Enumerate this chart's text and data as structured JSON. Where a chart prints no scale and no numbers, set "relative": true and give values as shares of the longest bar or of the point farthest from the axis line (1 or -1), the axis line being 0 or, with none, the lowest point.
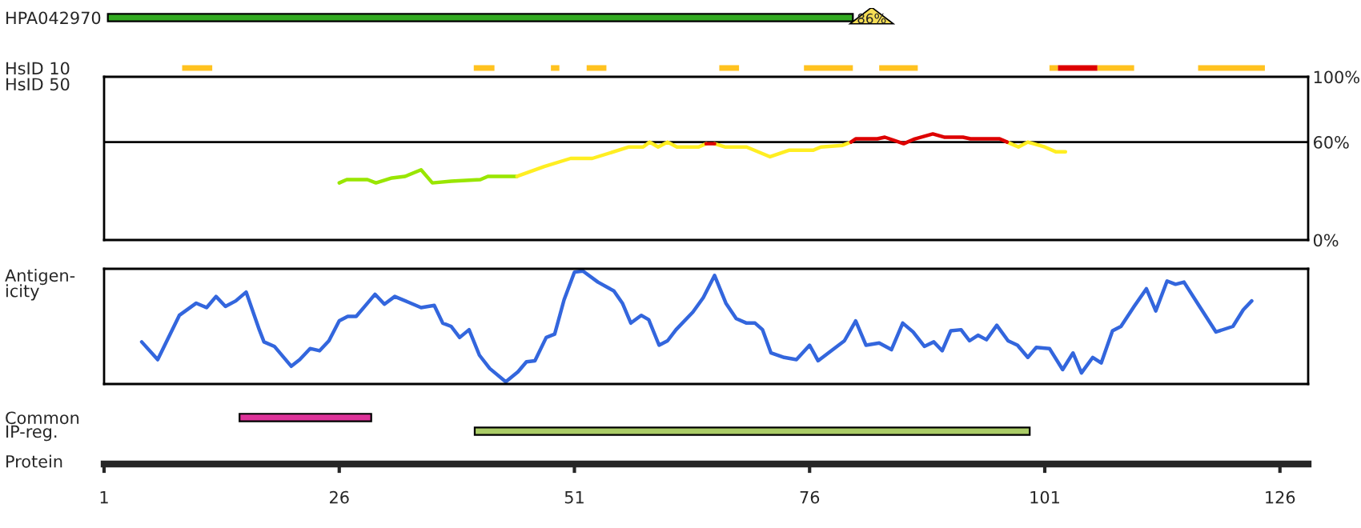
{
  "chart_data": [
    {
      "type": "bar",
      "orientation": "horizontal",
      "categories": [
        "HPA042970"
      ],
      "base": [
        1.4
      ],
      "values": [
        79.2
      ],
      "color": "#33aa22",
      "xlim": [
        1,
        129
      ],
      "tick_labels": "y",
      "annotations": [
        "86%"
      ]
    },
    {
      "type": "bar",
      "orientation": "horizontal",
      "categories": [
        "HsID 10"
      ],
      "xlim": [
        1,
        129
      ],
      "tick_labels": "y",
      "series": [
        {
          "color": "#ffc21f",
          "base": [
            9.3
          ],
          "values": [
            3.2
          ]
        },
        {
          "color": "#ffc21f",
          "base": [
            40.3
          ],
          "values": [
            2.2
          ]
        },
        {
          "color": "#ffc21f",
          "base": [
            48.5
          ],
          "values": [
            0.9
          ]
        },
        {
          "color": "#ffc21f",
          "base": [
            52.3
          ],
          "values": [
            2.1
          ]
        },
        {
          "color": "#ffc21f",
          "base": [
            66.4
          ],
          "values": [
            2.1
          ]
        },
        {
          "color": "#ffc21f",
          "base": [
            75.4
          ],
          "values": [
            5.2
          ]
        },
        {
          "color": "#ffc21f",
          "base": [
            83.4
          ],
          "values": [
            4.1
          ]
        },
        {
          "color": "#ffc21f",
          "base": [
            101.5
          ],
          "values": [
            0.9
          ]
        },
        {
          "color": "#dd0000",
          "base": [
            102.4
          ],
          "values": [
            4.2
          ]
        },
        {
          "color": "#ffc21f",
          "base": [
            106.6
          ],
          "values": [
            3.9
          ]
        },
        {
          "color": "#ffc21f",
          "base": [
            117.3
          ],
          "values": [
            7.1
          ]
        }
      ]
    },
    {
      "type": "line",
      "ylabel": "HsID 50",
      "xlim": [
        1,
        129
      ],
      "ylim": [
        0,
        100
      ],
      "tick_labels": "y",
      "yticks": [
        {
          "value": 0,
          "label": "0%"
        },
        {
          "value": 60,
          "label": "60%"
        },
        {
          "value": 100,
          "label": "100%"
        }
      ],
      "ref_lines": [
        {
          "axis": "y",
          "value": 60,
          "color": "#000000"
        }
      ],
      "series": [
        {
          "color": "#99e600",
          "x": [
            26,
            26.8,
            29,
            29.9,
            31.6,
            33,
            34.7,
            35.9,
            37.9,
            41,
            41.8,
            44.9
          ],
          "values": [
            35,
            37,
            37,
            35,
            38,
            39,
            43,
            35,
            36,
            37,
            39,
            39
          ]
        },
        {
          "color": "#ffee22",
          "x": [
            44.9,
            47.8,
            50.6,
            52.9,
            56.8,
            58.3,
            59,
            59.9,
            60.9,
            61.9,
            64.2,
            65,
            65.5,
            65.9,
            67,
            69.3,
            71.8,
            73.8,
            76.4,
            77.2,
            79.5,
            80.4,
            88,
            97,
            98.2,
            99.2,
            101,
            102.2,
            103.2
          ],
          "values": [
            39,
            45,
            50,
            50,
            57,
            57,
            60,
            57,
            60,
            57,
            57,
            59,
            null,
            59,
            57,
            57,
            51,
            55,
            55,
            57,
            58,
            60,
            null,
            60,
            57,
            60,
            57,
            54,
            54
          ]
        },
        {
          "color": "#dd0000",
          "x": [
            65,
            65.9,
            73,
            80.4,
            80.9,
            83.2,
            84,
            86,
            87.2,
            89.1,
            90.3,
            92.3,
            93.1,
            96.2,
            97
          ],
          "values": [
            59,
            59,
            null,
            60,
            62,
            62,
            63,
            59,
            62,
            65,
            63,
            63,
            62,
            62,
            60
          ]
        }
      ]
    },
    {
      "type": "line",
      "ylabel": "Antigen-\nicity",
      "relative": true,
      "xlim": [
        1,
        129
      ],
      "tick_labels": false,
      "series": [
        {
          "color": "#3366dd",
          "x": [
            5.0,
            6.7,
            9.0,
            10.8,
            11.9,
            12.9,
            13.9,
            15.0,
            16.1,
            17.5,
            18.0,
            19.1,
            20.9,
            21.8,
            22.9,
            23.9,
            24.9,
            26.0,
            26.9,
            27.8,
            28.7,
            29.8,
            30.8,
            31.9,
            33.3,
            34.7,
            36.1,
            37.0,
            37.9,
            38.8,
            39.8,
            40.9,
            42.0,
            43.7,
            45.0,
            45.9,
            46.8,
            48.0,
            48.9,
            49.9,
            51.0,
            51.9,
            53.5,
            55.2,
            56.1,
            57.0,
            58.1,
            58.9,
            60.0,
            60.9,
            61.8,
            63.6,
            64.7,
            65.9,
            67.1,
            68.2,
            69.3,
            70.2,
            71.0,
            71.9,
            73.3,
            74.6,
            76.0,
            76.9,
            78.3,
            79.7,
            80.9,
            82.0,
            83.4,
            84.7,
            85.9,
            87.0,
            88.2,
            89.2,
            90.1,
            91.0,
            92.1,
            93.0,
            93.9,
            94.8,
            95.9,
            97.1,
            98.1,
            99.2,
            100.1,
            101.5,
            102.9,
            104.0,
            104.9,
            106.1,
            107.0,
            108.2,
            109.1,
            110.5,
            111.8,
            112.8,
            114.0,
            114.9,
            115.8,
            117.3,
            119.2,
            121.0,
            122.1,
            123.0
          ],
          "values": [
            0.36,
            0.2,
            0.6,
            0.71,
            0.67,
            0.77,
            0.68,
            0.73,
            0.81,
            0.47,
            0.36,
            0.32,
            0.14,
            0.2,
            0.3,
            0.28,
            0.37,
            0.55,
            0.59,
            0.59,
            0.68,
            0.79,
            0.7,
            0.77,
            0.72,
            0.67,
            0.69,
            0.53,
            0.5,
            0.4,
            0.47,
            0.24,
            0.12,
            0,
            0.09,
            0.18,
            0.19,
            0.4,
            0.43,
            0.74,
            0.99,
            1.0,
            0.9,
            0.82,
            0.71,
            0.53,
            0.6,
            0.56,
            0.33,
            0.37,
            0.47,
            0.63,
            0.76,
            0.96,
            0.71,
            0.57,
            0.53,
            0.53,
            0.47,
            0.26,
            0.22,
            0.2,
            0.33,
            0.19,
            0.28,
            0.37,
            0.55,
            0.33,
            0.35,
            0.29,
            0.53,
            0.45,
            0.32,
            0.36,
            0.28,
            0.46,
            0.47,
            0.37,
            0.42,
            0.38,
            0.51,
            0.37,
            0.33,
            0.22,
            0.31,
            0.3,
            0.11,
            0.26,
            0.08,
            0.22,
            0.17,
            0.46,
            0.5,
            0.68,
            0.84,
            0.64,
            0.91,
            0.88,
            0.9,
            0.7,
            0.45,
            0.5,
            0.65,
            0.73
          ]
        }
      ]
    },
    {
      "type": "bar",
      "orientation": "horizontal",
      "categories": [
        "Common",
        "IP-reg."
      ],
      "base": [
        15.4,
        40.4
      ],
      "values": [
        14.0,
        59.0
      ],
      "colors": [
        "#dd3399",
        "#aacc66"
      ],
      "xlabel": "Protein",
      "xlim": [
        1,
        129
      ],
      "xticks": [
        1,
        26,
        51,
        76,
        101,
        126
      ]
    }
  ]
}
